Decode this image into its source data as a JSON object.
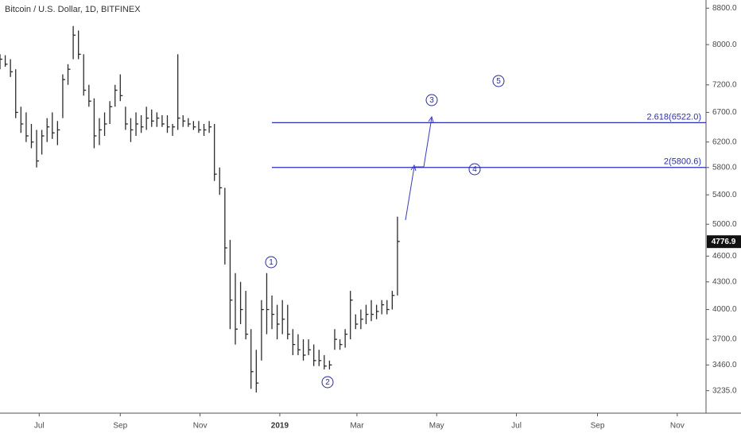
{
  "chart_data": {
    "type": "ohlc",
    "title": "Bitcoin / U.S. Dollar, 1D, BITFINEX",
    "color": "#2b2b2b",
    "log_scale": true,
    "x": [
      0,
      4,
      8,
      12,
      16,
      20,
      24,
      28,
      32,
      36,
      40,
      44,
      48,
      52,
      56,
      60,
      64,
      68,
      72,
      76,
      80,
      84,
      88,
      92,
      96,
      100,
      104,
      108,
      112,
      116,
      120,
      124,
      128,
      132,
      136,
      140,
      144,
      148,
      152,
      156,
      160,
      164,
      168,
      172,
      176,
      180,
      184,
      188,
      192,
      196,
      200,
      204,
      208,
      212,
      216,
      220,
      224,
      228,
      232,
      236,
      240,
      244,
      248,
      252,
      256,
      260,
      264,
      268,
      272,
      276,
      280,
      284,
      288,
      292,
      296,
      300,
      304
    ],
    "high": [
      7800,
      7780,
      7700,
      7500,
      6800,
      6700,
      6500,
      6400,
      6400,
      6600,
      6700,
      6550,
      7400,
      7600,
      8400,
      8300,
      7800,
      7200,
      6950,
      6600,
      6700,
      6900,
      7200,
      7400,
      6800,
      6600,
      6700,
      6650,
      6800,
      6750,
      6700,
      6650,
      6650,
      6500,
      7800,
      6650,
      6600,
      6550,
      6550,
      6500,
      6550,
      6500,
      5800,
      5500,
      4800,
      4400,
      4300,
      4200,
      3800,
      3600,
      4100,
      4400,
      4150,
      4050,
      4100,
      4050,
      3800,
      3750,
      3700,
      3700,
      3650,
      3600,
      3550,
      3500,
      3800,
      3700,
      3800,
      4200,
      3950,
      4000,
      4050,
      4100,
      4050,
      4100,
      4100,
      4200,
      5100
    ],
    "low": [
      7500,
      7550,
      7350,
      6600,
      6350,
      6200,
      6100,
      5800,
      6000,
      6200,
      6250,
      6150,
      6600,
      7200,
      7700,
      7700,
      7000,
      6800,
      6100,
      6150,
      6300,
      6500,
      6800,
      6900,
      6400,
      6200,
      6300,
      6350,
      6400,
      6450,
      6450,
      6450,
      6350,
      6300,
      6400,
      6450,
      6450,
      6400,
      6350,
      6300,
      6350,
      5600,
      5400,
      4500,
      3800,
      3650,
      3850,
      3700,
      3250,
      3220,
      3500,
      3750,
      3800,
      3700,
      3750,
      3700,
      3550,
      3550,
      3500,
      3550,
      3450,
      3450,
      3420,
      3420,
      3600,
      3600,
      3620,
      3700,
      3800,
      3800,
      3850,
      3880,
      3900,
      3950,
      3950,
      4000,
      4150
    ],
    "close": [
      7700,
      7600,
      7450,
      6700,
      6500,
      6300,
      6200,
      5900,
      6300,
      6450,
      6350,
      6400,
      7300,
      7500,
      8200,
      7800,
      7100,
      6900,
      6300,
      6400,
      6500,
      6800,
      7100,
      7000,
      6500,
      6400,
      6500,
      6450,
      6600,
      6550,
      6600,
      6500,
      6450,
      6450,
      6600,
      6550,
      6500,
      6450,
      6400,
      6400,
      6450,
      5700,
      5500,
      4700,
      4100,
      3800,
      4000,
      3750,
      3400,
      3300,
      4000,
      4000,
      3950,
      3850,
      3900,
      3750,
      3650,
      3600,
      3550,
      3600,
      3500,
      3500,
      3450,
      3460,
      3700,
      3650,
      3750,
      4100,
      3850,
      3900,
      3950,
      3950,
      3980,
      4050,
      4000,
      4150,
      4780
    ],
    "last_price": {
      "value": 4776.9,
      "label": "4776.9"
    },
    "xlim": [
      0,
      540
    ],
    "xticks": [
      {
        "value": 30,
        "label": "Jul"
      },
      {
        "value": 92,
        "label": "Sep"
      },
      {
        "value": 153,
        "label": "Nov"
      },
      {
        "value": 214,
        "label": "2019"
      },
      {
        "value": 273,
        "label": "Mar"
      },
      {
        "value": 334,
        "label": "May"
      },
      {
        "value": 395,
        "label": "Jul"
      },
      {
        "value": 457,
        "label": "Sep"
      },
      {
        "value": 518,
        "label": "Nov"
      }
    ],
    "ylim": [
      3050,
      8990
    ],
    "yticks": [
      {
        "value": 3235,
        "label": "3235.0"
      },
      {
        "value": 3460,
        "label": "3460.0"
      },
      {
        "value": 3700,
        "label": "3700.0"
      },
      {
        "value": 4000,
        "label": "4000.0"
      },
      {
        "value": 4300,
        "label": "4300.0"
      },
      {
        "value": 4600,
        "label": "4600.0"
      },
      {
        "value": 5000,
        "label": "5000.0"
      },
      {
        "value": 5400,
        "label": "5400.0"
      },
      {
        "value": 5800,
        "label": "5800.0"
      },
      {
        "value": 6200,
        "label": "6200.0"
      },
      {
        "value": 6700,
        "label": "6700.0"
      },
      {
        "value": 7200,
        "label": "7200.0"
      },
      {
        "value": 8000,
        "label": "8000.0"
      },
      {
        "value": 8800,
        "label": "8800.0"
      }
    ],
    "levels": [
      {
        "value": 6522.0,
        "label": "2.618(6522.0)"
      },
      {
        "value": 5800.6,
        "label": "2(5800.6)"
      }
    ],
    "level_color": "#2a2eb8",
    "waves": [
      "1",
      "2",
      "3",
      "4",
      "5"
    ]
  }
}
